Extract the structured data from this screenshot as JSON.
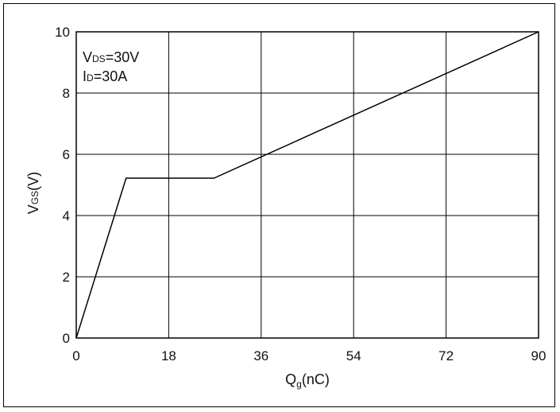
{
  "chart_data": {
    "type": "line",
    "title": "",
    "xlabel": {
      "main": "Q",
      "sub": "g",
      "unit": "(nC)"
    },
    "ylabel": {
      "main": "V",
      "sub": "GS",
      "unit": "(V)"
    },
    "xlim": [
      0,
      90
    ],
    "ylim": [
      0,
      10
    ],
    "xticks": [
      0,
      18,
      36,
      54,
      72,
      90
    ],
    "yticks": [
      0,
      2,
      4,
      6,
      8,
      10
    ],
    "grid": true,
    "annotations": [
      {
        "main": "V",
        "sub": "DS",
        "rest": "=30V"
      },
      {
        "main": "I",
        "sub": "D",
        "rest": "=30A"
      }
    ],
    "series": [
      {
        "x": [
          0,
          9.7,
          26.8,
          90
        ],
        "y": [
          0,
          5.22,
          5.22,
          10
        ]
      }
    ]
  }
}
